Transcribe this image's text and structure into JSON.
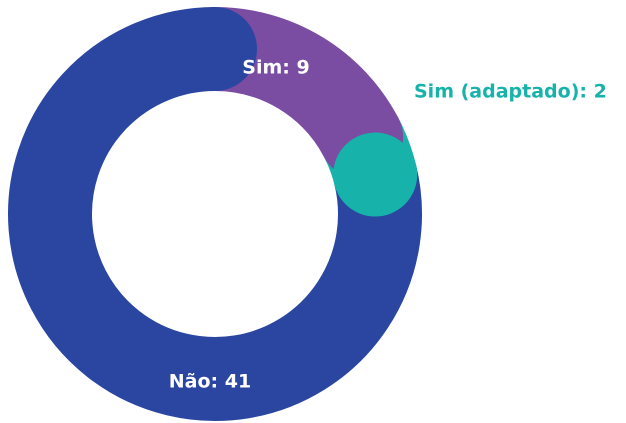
{
  "chart_data": {
    "type": "donut",
    "categories": [
      "Sim",
      "Sim (adaptado)",
      "Não"
    ],
    "values": [
      9,
      2,
      41
    ],
    "value_labels": [
      "Sim: 9",
      "Sim (adaptado): 2",
      "Não: 41"
    ],
    "colors": [
      "#7a4ca2",
      "#17b3ab",
      "#2b46a0"
    ],
    "label_colors": [
      "#ffffff",
      "#17b3ab",
      "#ffffff"
    ]
  }
}
